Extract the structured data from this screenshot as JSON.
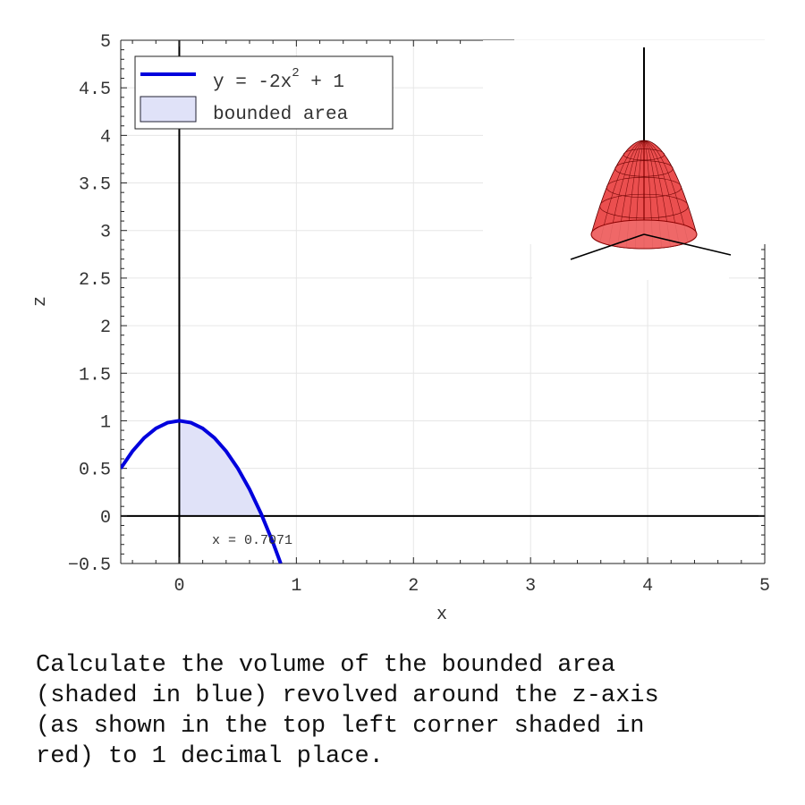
{
  "chart_data": {
    "type": "line",
    "xlabel": "x",
    "ylabel": "z",
    "xlim": [
      -0.5,
      5
    ],
    "ylim": [
      -0.5,
      5
    ],
    "x_ticks": [
      0,
      1,
      2,
      3,
      4,
      5
    ],
    "y_ticks": [
      -0.5,
      0,
      0.5,
      1,
      1.5,
      2,
      2.5,
      3,
      3.5,
      4,
      4.5,
      5
    ],
    "x_tick_labels": [
      "0",
      "1",
      "2",
      "3",
      "4",
      "5"
    ],
    "y_tick_labels": [
      "−0.5",
      "0",
      "0.5",
      "1",
      "1.5",
      "2",
      "2.5",
      "3",
      "3.5",
      "4",
      "4.5",
      "5"
    ],
    "grid": true,
    "series": [
      {
        "name": "y = -2x² + 1",
        "function": "-2x^2 + 1",
        "coefficients": {
          "a": -2,
          "b": 0,
          "c": 1
        },
        "color": "#0000dd",
        "x": [
          -0.5,
          -0.4,
          -0.3,
          -0.2,
          -0.1,
          0,
          0.1,
          0.2,
          0.3,
          0.4,
          0.5,
          0.6,
          0.7,
          0.8,
          0.866
        ],
        "y": [
          0.5,
          0.68,
          0.82,
          0.92,
          0.98,
          1,
          0.98,
          0.92,
          0.82,
          0.68,
          0.5,
          0.28,
          0.02,
          -0.28,
          -0.5
        ]
      }
    ],
    "shaded_region": {
      "name": "bounded area",
      "x_from": 0,
      "x_to": 0.7071,
      "color": "#e0e2f8"
    },
    "legend": {
      "position": "top-left",
      "entries": [
        {
          "label_main": "y = -2x",
          "label_sup": "2",
          "label_tail": " + 1",
          "kind": "line",
          "color": "#0000dd"
        },
        {
          "label_main": "bounded area",
          "kind": "patch",
          "color": "#e0e2f8"
        }
      ]
    },
    "annotations": [
      {
        "text": "x = 0.7071",
        "x": 0.7071,
        "y": 0
      }
    ],
    "inset": {
      "description": "3D solid of revolution about the z-axis",
      "color": "#e83030",
      "position": "top-right"
    }
  },
  "question": {
    "lines": [
      "Calculate the volume of the bounded area",
      "(shaded in blue) revolved around the z-axis",
      "(as shown in the top left corner shaded in",
      "red) to 1 decimal place."
    ]
  }
}
